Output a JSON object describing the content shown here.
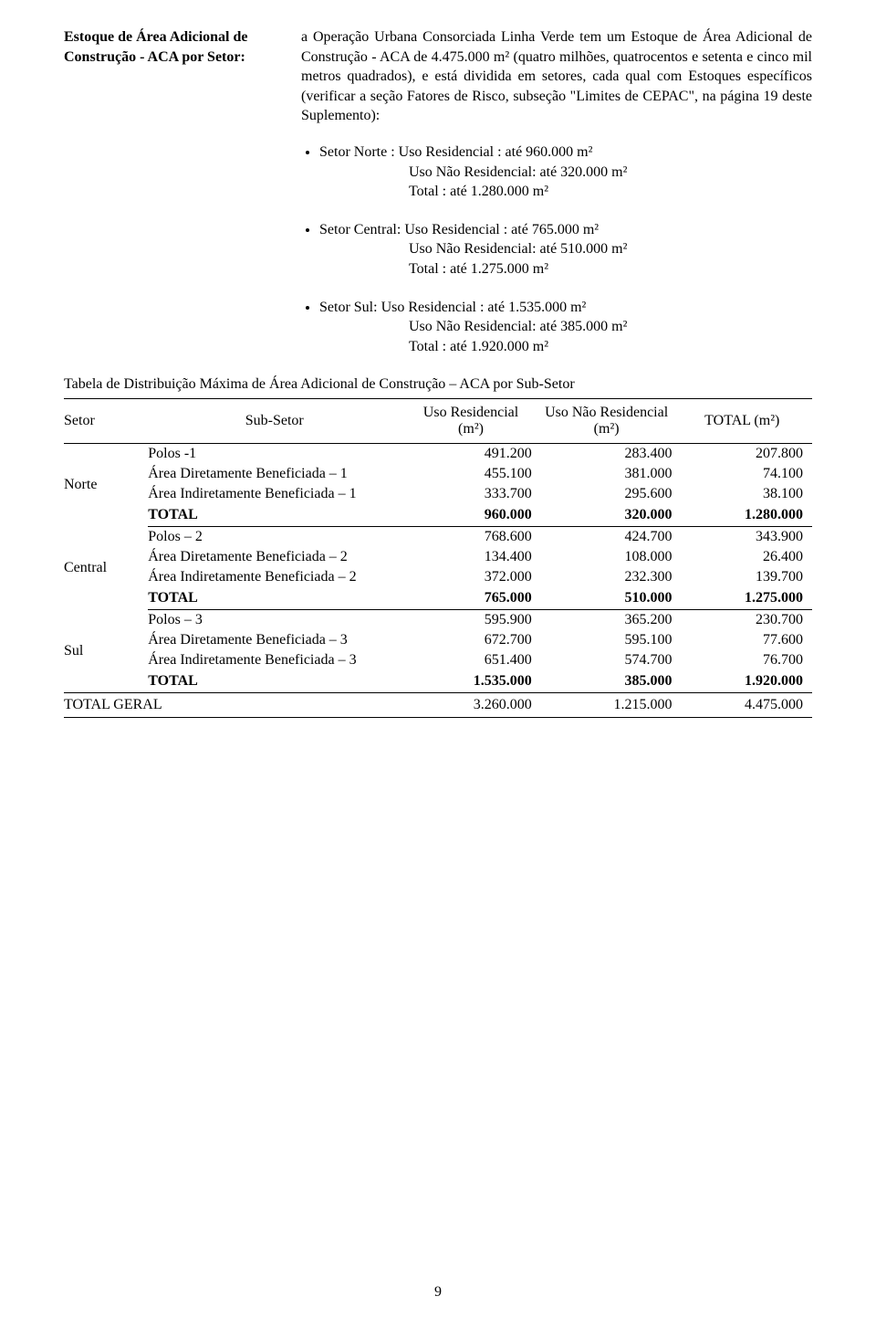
{
  "header": {
    "label": "Estoque de Área Adicional de Construção - ACA por Setor:",
    "desc": "a Operação Urbana Consorciada Linha Verde tem um Estoque de Área Adicional de Construção - ACA de 4.475.000 m² (quatro milhões, quatrocentos e setenta e cinco mil metros quadrados), e está dividida em setores, cada qual com Estoques específicos (verificar a seção Fatores de Risco, subseção \"Limites de CEPAC\", na página 19 deste Suplemento):"
  },
  "bullets": [
    {
      "line1": "Setor Norte : Uso Residencial : até 960.000 m²",
      "line2": "Uso Não Residencial: até 320.000 m²",
      "line3": "Total : até 1.280.000 m²"
    },
    {
      "line1": "Setor Central: Uso Residencial : até 765.000 m²",
      "line2": "Uso Não Residencial: até 510.000 m²",
      "line3": "Total : até 1.275.000 m²"
    },
    {
      "line1": "Setor Sul: Uso Residencial : até 1.535.000 m²",
      "line2": "Uso Não Residencial: até 385.000 m²",
      "line3": "Total : até 1.920.000 m²"
    }
  ],
  "table": {
    "title": "Tabela de Distribuição Máxima de Área Adicional de Construção – ACA por Sub-Setor",
    "headers": {
      "setor": "Setor",
      "subsetor": "Sub-Setor",
      "uso_res": "Uso Residencial (m²)",
      "uso_nao": "Uso Não Residencial (m²)",
      "total": "TOTAL (m²)"
    },
    "groups": [
      {
        "name": "Norte",
        "rows": [
          {
            "label": "Polos -1",
            "v1": "491.200",
            "v2": "283.400",
            "v3": "207.800"
          },
          {
            "label": "Área Diretamente Beneficiada – 1",
            "v1": "455.100",
            "v2": "381.000",
            "v3": "74.100"
          },
          {
            "label": "Área Indiretamente Beneficiada – 1",
            "v1": "333.700",
            "v2": "295.600",
            "v3": "38.100"
          }
        ],
        "total": {
          "label": "TOTAL",
          "v1": "960.000",
          "v2": "320.000",
          "v3": "1.280.000"
        }
      },
      {
        "name": "Central",
        "rows": [
          {
            "label": "Polos – 2",
            "v1": "768.600",
            "v2": "424.700",
            "v3": "343.900"
          },
          {
            "label": "Área Diretamente Beneficiada – 2",
            "v1": "134.400",
            "v2": "108.000",
            "v3": "26.400"
          },
          {
            "label": "Área Indiretamente Beneficiada – 2",
            "v1": "372.000",
            "v2": "232.300",
            "v3": "139.700"
          }
        ],
        "total": {
          "label": "TOTAL",
          "v1": "765.000",
          "v2": "510.000",
          "v3": "1.275.000"
        }
      },
      {
        "name": "Sul",
        "rows": [
          {
            "label": "Polos – 3",
            "v1": "595.900",
            "v2": "365.200",
            "v3": "230.700"
          },
          {
            "label": "Área Diretamente Beneficiada – 3",
            "v1": "672.700",
            "v2": "595.100",
            "v3": "77.600"
          },
          {
            "label": "Área Indiretamente Beneficiada – 3",
            "v1": "651.400",
            "v2": "574.700",
            "v3": "76.700"
          }
        ],
        "total": {
          "label": "TOTAL",
          "v1": "1.535.000",
          "v2": "385.000",
          "v3": "1.920.000"
        }
      }
    ],
    "grand": {
      "label": "TOTAL GERAL",
      "v1": "3.260.000",
      "v2": "1.215.000",
      "v3": "4.475.000"
    }
  },
  "page_number": "9"
}
